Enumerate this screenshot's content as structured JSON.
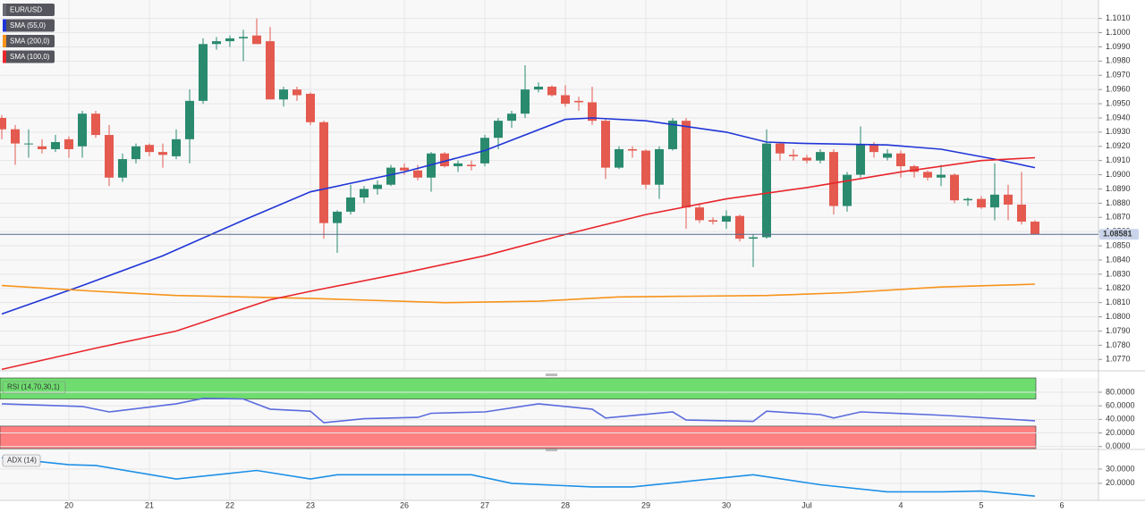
{
  "chart_data": [
    {
      "type": "candlestick",
      "title": "EUR/USD",
      "categories": [
        null,
        null,
        null,
        null,
        null,
        "20",
        null,
        null,
        null,
        null,
        null,
        "21",
        null,
        null,
        null,
        null,
        null,
        "22",
        null,
        null,
        null,
        null,
        null,
        "23",
        null,
        null,
        null,
        null,
        null,
        null,
        "26",
        null,
        null,
        null,
        null,
        null,
        "27",
        null,
        null,
        null,
        null,
        null,
        "28",
        null,
        null,
        null,
        null,
        null,
        "29",
        null,
        null,
        null,
        null,
        null,
        "30",
        null,
        null,
        null,
        null,
        null,
        "Jul",
        null,
        null,
        null,
        null,
        null,
        null,
        "4",
        null,
        null,
        null,
        null,
        null,
        "5",
        null,
        null,
        null,
        null,
        null,
        "6"
      ],
      "open": [
        1.094,
        1.0932,
        1.0922,
        1.092,
        1.0918,
        1.0925,
        1.092,
        1.0943,
        1.0928,
        1.0898,
        1.0911,
        1.0921,
        1.0916,
        1.0913,
        1.0925,
        1.0952,
        1.0992,
        1.0994,
        1.0996,
        1.0998,
        1.0994,
        1.0953,
        1.096,
        1.0957,
        1.0937,
        1.0866,
        1.0874,
        1.0884,
        1.089,
        1.0893,
        1.0905,
        1.0903,
        1.0898,
        1.0915,
        1.0906,
        1.0907,
        1.0908,
        1.0926,
        1.0938,
        1.0943,
        1.096,
        1.0962,
        1.0956,
        1.0952,
        1.0951,
        1.0938,
        1.0905,
        1.0918,
        1.0917,
        1.0893,
        1.0918,
        1.0938,
        1.0877,
        1.0868,
        1.0867,
        1.0871,
        1.0855,
        1.0856,
        1.0922,
        1.0914,
        1.0912,
        1.091,
        1.0916,
        1.0878,
        1.09,
        1.0921,
        1.0912,
        1.0915,
        1.0906,
        1.0902,
        1.0898,
        1.09,
        1.0882,
        1.0883,
        1.0877,
        1.0886,
        1.0879,
        1.0867,
        null,
        null
      ],
      "high": [
        1.0942,
        1.0935,
        1.0932,
        1.0925,
        1.0928,
        1.0927,
        1.0945,
        1.0945,
        1.0935,
        1.0915,
        1.0922,
        1.0922,
        1.0922,
        1.0932,
        1.096,
        1.0996,
        1.0997,
        1.0998,
        1.1002,
        1.101,
        1.1004,
        1.0962,
        1.0962,
        1.0958,
        1.0938,
        1.0875,
        1.0893,
        1.0892,
        1.0896,
        1.0907,
        1.0908,
        1.0907,
        1.0916,
        1.0916,
        1.091,
        1.091,
        1.0928,
        1.094,
        1.0945,
        1.0977,
        1.0965,
        1.0963,
        1.0963,
        1.0955,
        1.0962,
        1.094,
        1.092,
        1.092,
        1.0918,
        1.092,
        1.094,
        1.094,
        1.088,
        1.087,
        1.0875,
        1.0872,
        1.0858,
        1.0932,
        1.0923,
        1.0918,
        1.0914,
        1.0918,
        1.0918,
        1.0902,
        1.0934,
        1.0923,
        1.0918,
        1.0917,
        1.0907,
        1.0903,
        1.0907,
        1.0901,
        1.0884,
        1.0885,
        1.0908,
        1.0893,
        1.0902,
        1.0868,
        null,
        null
      ],
      "low": [
        1.0925,
        1.0907,
        1.0912,
        1.0915,
        1.0916,
        1.0912,
        1.0912,
        1.0926,
        1.0892,
        1.0895,
        1.0908,
        1.0913,
        1.0905,
        1.0911,
        1.0908,
        1.095,
        1.0988,
        1.099,
        1.098,
        1.0992,
        1.0953,
        1.0948,
        1.0952,
        1.0935,
        1.0855,
        1.0845,
        1.0872,
        1.088,
        1.0886,
        1.0892,
        1.09,
        1.0896,
        1.0888,
        1.0905,
        1.0902,
        1.0903,
        1.0906,
        1.0918,
        1.0933,
        1.094,
        1.0958,
        1.0955,
        1.0948,
        1.0945,
        1.0935,
        1.0897,
        1.0904,
        1.0912,
        1.089,
        1.0883,
        1.0917,
        1.0862,
        1.0866,
        1.0865,
        1.0862,
        1.0853,
        1.0835,
        1.0855,
        1.091,
        1.091,
        1.0908,
        1.0908,
        1.0872,
        1.0874,
        1.0898,
        1.0912,
        1.091,
        1.0898,
        1.0898,
        1.0896,
        1.0892,
        1.088,
        1.0878,
        1.0876,
        1.0868,
        1.0868,
        1.0865,
        1.0858,
        null,
        null
      ],
      "close": [
        1.0932,
        1.0922,
        1.0922,
        1.0918,
        1.0923,
        1.0918,
        1.0943,
        1.0928,
        1.0898,
        1.0911,
        1.092,
        1.0916,
        1.0914,
        1.0925,
        1.0952,
        1.0992,
        1.0994,
        1.0996,
        1.0997,
        1.0992,
        1.0953,
        1.096,
        1.0956,
        1.0937,
        1.0866,
        1.0874,
        1.0884,
        1.089,
        1.0893,
        1.0905,
        1.0903,
        1.0898,
        1.0915,
        1.0906,
        1.0908,
        1.0906,
        1.0926,
        1.0938,
        1.0943,
        1.096,
        1.0962,
        1.0956,
        1.095,
        1.0951,
        1.0938,
        1.0905,
        1.0918,
        1.0917,
        1.0893,
        1.0918,
        1.0938,
        1.0877,
        1.0868,
        1.0867,
        1.0871,
        1.0855,
        1.0856,
        1.0922,
        1.0915,
        1.0913,
        1.091,
        1.0916,
        1.0878,
        1.09,
        1.0921,
        1.0916,
        1.0915,
        1.0906,
        1.0902,
        1.0898,
        1.09,
        1.0882,
        1.0883,
        1.0877,
        1.0886,
        1.0879,
        1.0867,
        1.0858,
        null,
        null
      ],
      "up_color": "#2a8a6e",
      "down_color": "#e45a4f",
      "ylim": [
        1.0762,
        1.1023
      ],
      "yticks": [
        {
          "value": 1.101,
          "label": "1.1010"
        },
        {
          "value": 1.1,
          "label": "1.1000"
        },
        {
          "value": 1.099,
          "label": "1.0990"
        },
        {
          "value": 1.098,
          "label": "1.0980"
        },
        {
          "value": 1.097,
          "label": "1.0970"
        },
        {
          "value": 1.096,
          "label": "1.0960"
        },
        {
          "value": 1.095,
          "label": "1.0950"
        },
        {
          "value": 1.094,
          "label": "1.0940"
        },
        {
          "value": 1.093,
          "label": "1.0930"
        },
        {
          "value": 1.092,
          "label": "1.0920"
        },
        {
          "value": 1.091,
          "label": "1.0910"
        },
        {
          "value": 1.09,
          "label": "1.0900"
        },
        {
          "value": 1.089,
          "label": "1.0890"
        },
        {
          "value": 1.088,
          "label": "1.0880"
        },
        {
          "value": 1.087,
          "label": "1.0870"
        },
        {
          "value": 1.086,
          "label": "1.0860"
        },
        {
          "value": 1.085,
          "label": "1.0850"
        },
        {
          "value": 1.084,
          "label": "1.0840"
        },
        {
          "value": 1.083,
          "label": "1.0830"
        },
        {
          "value": 1.082,
          "label": "1.0820"
        },
        {
          "value": 1.081,
          "label": "1.0810"
        },
        {
          "value": 1.08,
          "label": "1.0800"
        },
        {
          "value": 1.079,
          "label": "1.0790"
        },
        {
          "value": 1.078,
          "label": "1.0780"
        },
        {
          "value": 1.077,
          "label": "1.0770"
        }
      ],
      "last_price": 1.08581,
      "grid": true,
      "series": [
        {
          "name": "SMA (55,0)",
          "color": "#1f35d6",
          "x": [
            0,
            6,
            12,
            18,
            23,
            30,
            36,
            42,
            44,
            48,
            54,
            57,
            60,
            66,
            70,
            74,
            77
          ],
          "values": [
            1.0802,
            1.0822,
            1.0843,
            1.0868,
            1.0888,
            1.0902,
            1.0917,
            1.0939,
            1.094,
            1.0938,
            1.093,
            1.0923,
            1.0922,
            1.0921,
            1.0918,
            1.0911,
            1.0905
          ]
        },
        {
          "name": "SMA (200,0)",
          "color": "#f7931a",
          "x": [
            0,
            7,
            13,
            23,
            33,
            40,
            46,
            57,
            63,
            70,
            77
          ],
          "values": [
            1.0822,
            1.0818,
            1.0815,
            1.0813,
            1.081,
            1.0811,
            1.0814,
            1.0815,
            1.0817,
            1.0821,
            1.0823
          ]
        },
        {
          "name": "SMA (100,0)",
          "color": "#e8262b",
          "x": [
            0,
            7,
            13,
            20,
            23,
            30,
            36,
            42,
            48,
            54,
            60,
            67,
            73,
            77
          ],
          "values": [
            1.0763,
            1.0778,
            1.079,
            1.0812,
            1.0818,
            1.0831,
            1.0843,
            1.0858,
            1.0872,
            1.0883,
            1.0891,
            1.0902,
            1.091,
            1.0912
          ]
        }
      ]
    },
    {
      "type": "line",
      "title": "RSI (14,70,30,1)",
      "ylim": [
        -3,
        101
      ],
      "yticks": [
        {
          "value": 80,
          "label": "80.0000"
        },
        {
          "value": 60,
          "label": "60.0000"
        },
        {
          "value": 40,
          "label": "40.0000"
        },
        {
          "value": 20,
          "label": "20.0000"
        },
        {
          "value": 0,
          "label": "0.0000"
        }
      ],
      "overbought": 70,
      "oversold": 30,
      "overbought_color": "#6fdc6f",
      "oversold_color": "#ff8080",
      "series": [
        {
          "color": "#5a6bdc",
          "x": [
            0,
            6,
            8,
            13,
            15,
            18,
            20,
            23,
            24,
            27,
            31,
            32,
            36,
            40,
            44,
            45,
            50,
            51,
            56,
            57,
            61,
            62,
            64,
            69,
            71,
            77
          ],
          "values": [
            63,
            59,
            51,
            63,
            71,
            70,
            55,
            52,
            35,
            41,
            43,
            49,
            51,
            63,
            55,
            42,
            51,
            39,
            37,
            52,
            47,
            42,
            51,
            47,
            45,
            38
          ]
        }
      ]
    },
    {
      "type": "line",
      "title": "ADX (14)",
      "ylim": [
        8,
        42.5
      ],
      "yticks": [
        {
          "value": 30,
          "label": "30.0000"
        },
        {
          "value": 20,
          "label": "20.0000"
        }
      ],
      "series": [
        {
          "color": "#1e90e6",
          "x": [
            0,
            5,
            7,
            13,
            19,
            23,
            25,
            35,
            38,
            44,
            47,
            56,
            61,
            66,
            70,
            73,
            77
          ],
          "values": [
            38,
            33,
            32.5,
            23,
            29,
            23,
            26,
            26,
            20,
            17.5,
            17.5,
            26,
            19,
            14,
            14,
            14.5,
            11
          ]
        }
      ]
    }
  ]
}
